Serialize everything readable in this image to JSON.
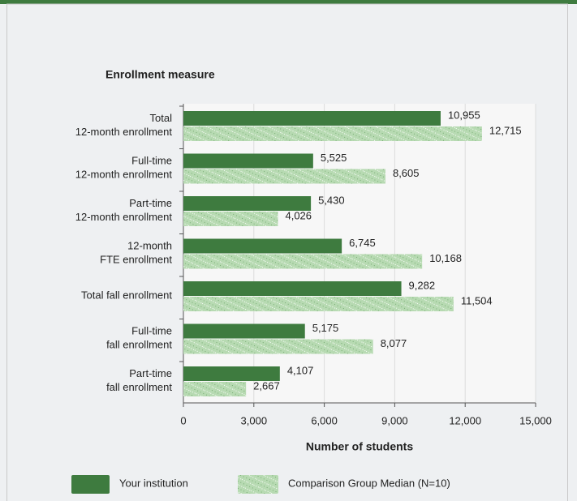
{
  "chart_data": {
    "type": "hbar",
    "y_axis_title": "Enrollment measure",
    "x_axis_title": "Number of students",
    "categories": [
      [
        "Total",
        "12-month enrollment"
      ],
      [
        "Full-time",
        "12-month enrollment"
      ],
      [
        "Part-time",
        "12-month enrollment"
      ],
      [
        "12-month",
        "FTE enrollment"
      ],
      [
        "Total fall enrollment"
      ],
      [
        "Full-time",
        "fall enrollment"
      ],
      [
        "Part-time",
        "fall enrollment"
      ]
    ],
    "series": [
      {
        "name": "Your institution",
        "color": "#3e7b3f",
        "pattern": "solid",
        "values": [
          10955,
          5525,
          5430,
          6745,
          9282,
          5175,
          4107
        ],
        "value_labels": [
          "10,955",
          "5,525",
          "5,430",
          "6,745",
          "9,282",
          "5,175",
          "4,107"
        ]
      },
      {
        "name": "Comparison Group Median (N=10)",
        "color": "#b7dab2",
        "pattern": "hatch",
        "values": [
          12715,
          8605,
          4026,
          10168,
          11504,
          8077,
          2667
        ],
        "value_labels": [
          "12,715",
          "8,605",
          "4,026",
          "10,168",
          "11,504",
          "8,077",
          "2,667"
        ]
      }
    ],
    "xlim": [
      0,
      15000
    ],
    "xticks": [
      0,
      {
        "value": 3000,
        "label": "3,000"
      },
      {
        "value": 6000,
        "label": "6,000"
      },
      {
        "value": 9000,
        "label": "9,000"
      },
      {
        "value": 12000,
        "label": "12,000"
      },
      {
        "value": 15000,
        "label": "15,000"
      }
    ],
    "grid": true
  }
}
